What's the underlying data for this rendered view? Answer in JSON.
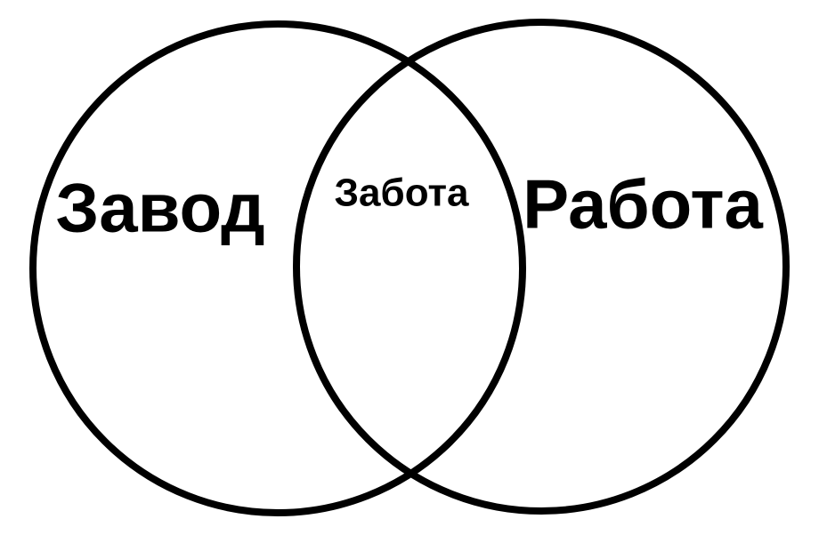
{
  "diagram": {
    "type": "venn",
    "left_label": "Завод",
    "intersection_label": "Забота",
    "right_label": "Работа",
    "stroke_color": "#000000",
    "text_color": "#000000",
    "background": "#ffffff"
  }
}
